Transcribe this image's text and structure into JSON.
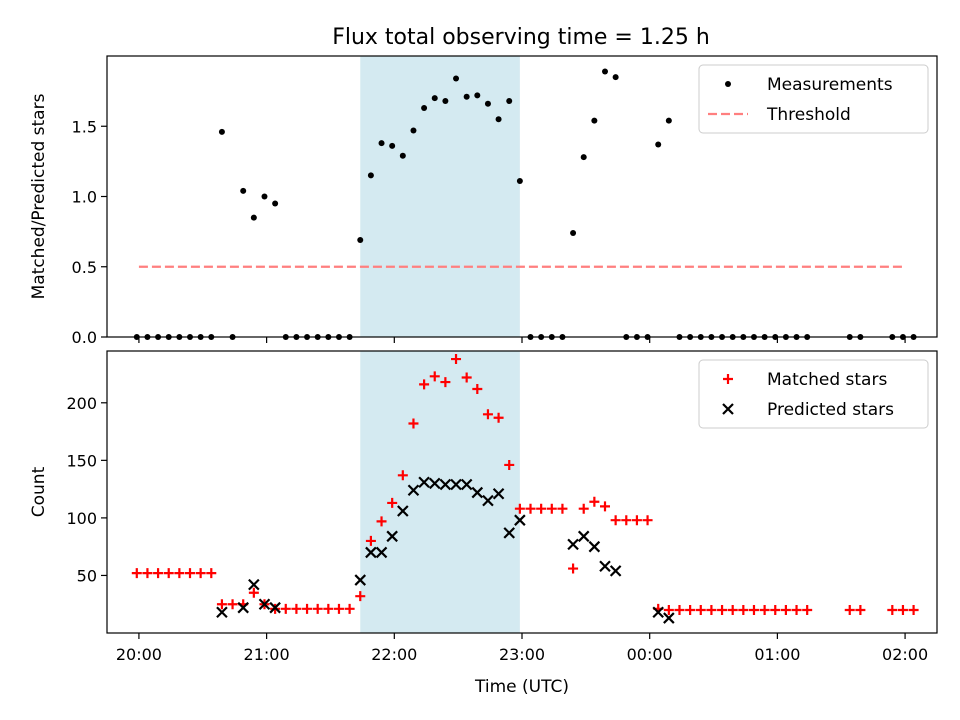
{
  "title": "Flux total observing time = 1.25 h",
  "chart_data": [
    {
      "type": "scatter",
      "ylabel": "Matched/Predicted stars",
      "ylim": [
        0,
        2.0
      ],
      "xlim": [
        "19:45",
        "02:15"
      ],
      "yticks": [
        "0.0",
        "0.5",
        "1.0",
        "1.5"
      ],
      "highlight_span": [
        "21:44",
        "22:59"
      ],
      "highlight_color": "#d4eaf1",
      "legend_position": "top-right",
      "series": [
        {
          "name": "Measurements",
          "marker": "dot",
          "color": "#000000",
          "points": [
            [
              "19:59",
              0
            ],
            [
              "20:04",
              0
            ],
            [
              "20:09",
              0
            ],
            [
              "20:14",
              0
            ],
            [
              "20:19",
              0
            ],
            [
              "20:24",
              0
            ],
            [
              "20:29",
              0
            ],
            [
              "20:34",
              0
            ],
            [
              "20:39",
              1.46
            ],
            [
              "20:44",
              0
            ],
            [
              "20:49",
              1.04
            ],
            [
              "20:54",
              0.85
            ],
            [
              "20:59",
              1.0
            ],
            [
              "21:04",
              0.95
            ],
            [
              "21:09",
              0
            ],
            [
              "21:14",
              0
            ],
            [
              "21:19",
              0
            ],
            [
              "21:24",
              0
            ],
            [
              "21:29",
              0
            ],
            [
              "21:34",
              0
            ],
            [
              "21:39",
              0
            ],
            [
              "21:44",
              0.69
            ],
            [
              "21:49",
              1.15
            ],
            [
              "21:54",
              1.38
            ],
            [
              "21:59",
              1.36
            ],
            [
              "22:04",
              1.29
            ],
            [
              "22:09",
              1.47
            ],
            [
              "22:14",
              1.63
            ],
            [
              "22:19",
              1.7
            ],
            [
              "22:24",
              1.68
            ],
            [
              "22:29",
              1.84
            ],
            [
              "22:34",
              1.71
            ],
            [
              "22:39",
              1.72
            ],
            [
              "22:44",
              1.66
            ],
            [
              "22:49",
              1.55
            ],
            [
              "22:54",
              1.68
            ],
            [
              "22:59",
              1.11
            ],
            [
              "23:04",
              0
            ],
            [
              "23:09",
              0
            ],
            [
              "23:14",
              0
            ],
            [
              "23:19",
              0
            ],
            [
              "23:24",
              0.74
            ],
            [
              "23:29",
              1.28
            ],
            [
              "23:34",
              1.54
            ],
            [
              "23:39",
              1.89
            ],
            [
              "23:44",
              1.85
            ],
            [
              "23:49",
              0
            ],
            [
              "23:54",
              0
            ],
            [
              "23:59",
              0
            ],
            [
              "00:04",
              1.37
            ],
            [
              "00:09",
              1.54
            ],
            [
              "00:14",
              0
            ],
            [
              "00:19",
              0
            ],
            [
              "00:24",
              0
            ],
            [
              "00:29",
              0
            ],
            [
              "00:34",
              0
            ],
            [
              "00:39",
              0
            ],
            [
              "00:44",
              0
            ],
            [
              "00:49",
              0
            ],
            [
              "00:54",
              0
            ],
            [
              "00:59",
              0
            ],
            [
              "01:04",
              0
            ],
            [
              "01:09",
              0
            ],
            [
              "01:14",
              0
            ],
            [
              "01:34",
              0
            ],
            [
              "01:39",
              0
            ],
            [
              "01:54",
              0
            ],
            [
              "01:59",
              0
            ],
            [
              "02:04",
              0
            ]
          ]
        },
        {
          "name": "Threshold",
          "marker": "dashed-line",
          "color": "#ff7f7f",
          "points": [
            [
              "20:00",
              0.5
            ],
            [
              "02:00",
              0.5
            ]
          ]
        }
      ]
    },
    {
      "type": "scatter",
      "xlabel": "Time (UTC)",
      "ylabel": "Count",
      "ylim": [
        0,
        245
      ],
      "xlim": [
        "19:45",
        "02:15"
      ],
      "yticks": [
        "50",
        "100",
        "150",
        "200"
      ],
      "xticks": [
        "20:00",
        "21:00",
        "22:00",
        "23:00",
        "00:00",
        "01:00",
        "02:00"
      ],
      "highlight_span": [
        "21:44",
        "22:59"
      ],
      "highlight_color": "#d4eaf1",
      "legend_position": "top-right",
      "series": [
        {
          "name": "Matched stars",
          "marker": "plus",
          "color": "#ff0000",
          "points": [
            [
              "19:59",
              52
            ],
            [
              "20:04",
              52
            ],
            [
              "20:09",
              52
            ],
            [
              "20:14",
              52
            ],
            [
              "20:19",
              52
            ],
            [
              "20:24",
              52
            ],
            [
              "20:29",
              52
            ],
            [
              "20:34",
              52
            ],
            [
              "20:39",
              25
            ],
            [
              "20:44",
              25
            ],
            [
              "20:49",
              25
            ],
            [
              "20:54",
              35
            ],
            [
              "20:59",
              25
            ],
            [
              "21:04",
              21
            ],
            [
              "21:09",
              21
            ],
            [
              "21:14",
              21
            ],
            [
              "21:19",
              21
            ],
            [
              "21:24",
              21
            ],
            [
              "21:29",
              21
            ],
            [
              "21:34",
              21
            ],
            [
              "21:39",
              21
            ],
            [
              "21:44",
              32
            ],
            [
              "21:49",
              80
            ],
            [
              "21:54",
              97
            ],
            [
              "21:59",
              113
            ],
            [
              "22:04",
              137
            ],
            [
              "22:09",
              182
            ],
            [
              "22:14",
              216
            ],
            [
              "22:19",
              223
            ],
            [
              "22:24",
              218
            ],
            [
              "22:29",
              238
            ],
            [
              "22:34",
              222
            ],
            [
              "22:39",
              212
            ],
            [
              "22:44",
              190
            ],
            [
              "22:49",
              187
            ],
            [
              "22:54",
              146
            ],
            [
              "22:59",
              108
            ],
            [
              "23:04",
              108
            ],
            [
              "23:09",
              108
            ],
            [
              "23:14",
              108
            ],
            [
              "23:19",
              108
            ],
            [
              "23:24",
              56
            ],
            [
              "23:29",
              108
            ],
            [
              "23:34",
              114
            ],
            [
              "23:39",
              110
            ],
            [
              "23:44",
              98
            ],
            [
              "23:49",
              98
            ],
            [
              "23:54",
              98
            ],
            [
              "23:59",
              98
            ],
            [
              "00:04",
              21
            ],
            [
              "00:09",
              20
            ],
            [
              "00:14",
              20
            ],
            [
              "00:19",
              20
            ],
            [
              "00:24",
              20
            ],
            [
              "00:29",
              20
            ],
            [
              "00:34",
              20
            ],
            [
              "00:39",
              20
            ],
            [
              "00:44",
              20
            ],
            [
              "00:49",
              20
            ],
            [
              "00:54",
              20
            ],
            [
              "00:59",
              20
            ],
            [
              "01:04",
              20
            ],
            [
              "01:09",
              20
            ],
            [
              "01:14",
              20
            ],
            [
              "01:34",
              20
            ],
            [
              "01:39",
              20
            ],
            [
              "01:54",
              20
            ],
            [
              "01:59",
              20
            ],
            [
              "02:04",
              20
            ]
          ]
        },
        {
          "name": "Predicted stars",
          "marker": "x",
          "color": "#000000",
          "points": [
            [
              "20:39",
              18
            ],
            [
              "20:49",
              22
            ],
            [
              "20:54",
              42
            ],
            [
              "20:59",
              25
            ],
            [
              "21:04",
              22
            ],
            [
              "21:44",
              46
            ],
            [
              "21:49",
              70
            ],
            [
              "21:54",
              70
            ],
            [
              "21:59",
              84
            ],
            [
              "22:04",
              106
            ],
            [
              "22:09",
              124
            ],
            [
              "22:14",
              131
            ],
            [
              "22:19",
              130
            ],
            [
              "22:24",
              129
            ],
            [
              "22:29",
              129
            ],
            [
              "22:34",
              129
            ],
            [
              "22:39",
              122
            ],
            [
              "22:44",
              115
            ],
            [
              "22:49",
              121
            ],
            [
              "22:54",
              87
            ],
            [
              "22:59",
              98
            ],
            [
              "23:24",
              77
            ],
            [
              "23:29",
              84
            ],
            [
              "23:34",
              75
            ],
            [
              "23:39",
              58
            ],
            [
              "23:44",
              54
            ],
            [
              "00:04",
              18
            ],
            [
              "00:09",
              13
            ]
          ]
        }
      ]
    }
  ]
}
